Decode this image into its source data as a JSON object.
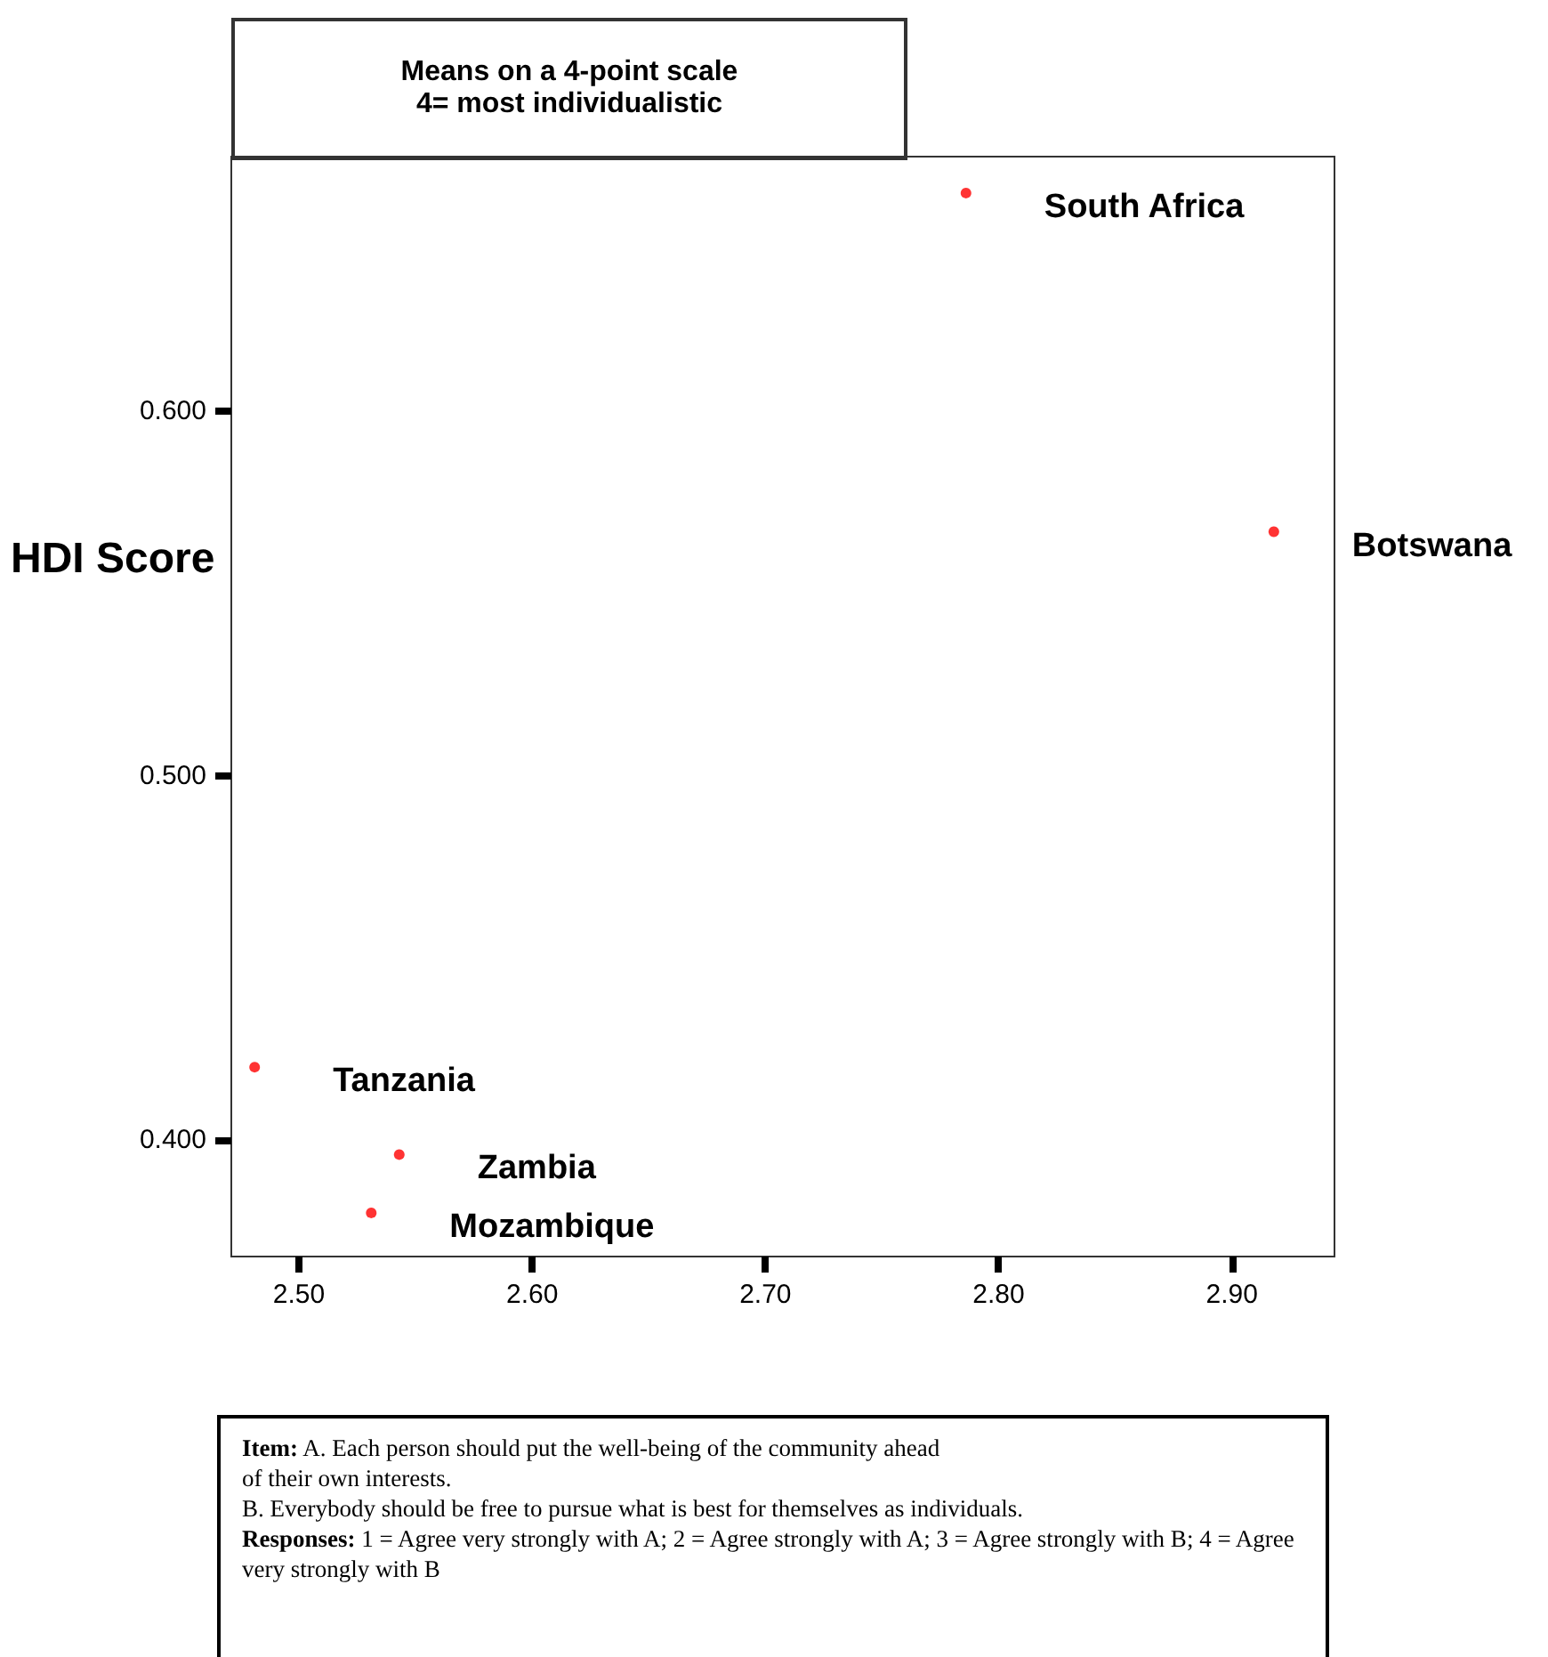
{
  "chart_data": {
    "type": "scatter",
    "title": "Means on a 4-point scale\n4= most individualistic",
    "ylabel": "HDI Score",
    "x": [
      2.786,
      2.918,
      2.481,
      2.543,
      2.531
    ],
    "series": [
      {
        "color": "#ff0000",
        "values": [
          0.66,
          0.567,
          0.42,
          0.396,
          0.38
        ]
      }
    ],
    "xlim": [
      2.471,
      2.944
    ],
    "ylim": [
      0.368,
      0.67
    ],
    "xticks": [
      {
        "value": 2.5,
        "label": "2.50"
      },
      {
        "value": 2.6,
        "label": "2.60"
      },
      {
        "value": 2.7,
        "label": "2.70"
      },
      {
        "value": 2.8,
        "label": "2.80"
      },
      {
        "value": 2.9,
        "label": "2.90"
      }
    ],
    "yticks": [
      {
        "value": 0.4,
        "label": "0.400"
      },
      {
        "value": 0.5,
        "label": "0.500"
      },
      {
        "value": 0.6,
        "label": "0.600"
      }
    ],
    "marker": "circle",
    "grid": false,
    "annotations": [
      {
        "text": "South Africa",
        "x": 2.786,
        "y": 0.66
      },
      {
        "text": "Botswana",
        "x": 2.918,
        "y": 0.567
      },
      {
        "text": "Tanzania",
        "x": 2.481,
        "y": 0.42
      },
      {
        "text": "Zambia",
        "x": 2.543,
        "y": 0.396
      },
      {
        "text": "Mozambique",
        "x": 2.531,
        "y": 0.38
      },
      "Item: A. Each person should put the well-being of the community ahead\nof their own interests.\nB. Everybody should be free to pursue what is best for themselves as individuals.\nResponses: 1 = Agree very strongly with A; 2 = Agree strongly with A; 3 = Agree strongly with B; 4 = Agree very strongly with B"
    ]
  }
}
